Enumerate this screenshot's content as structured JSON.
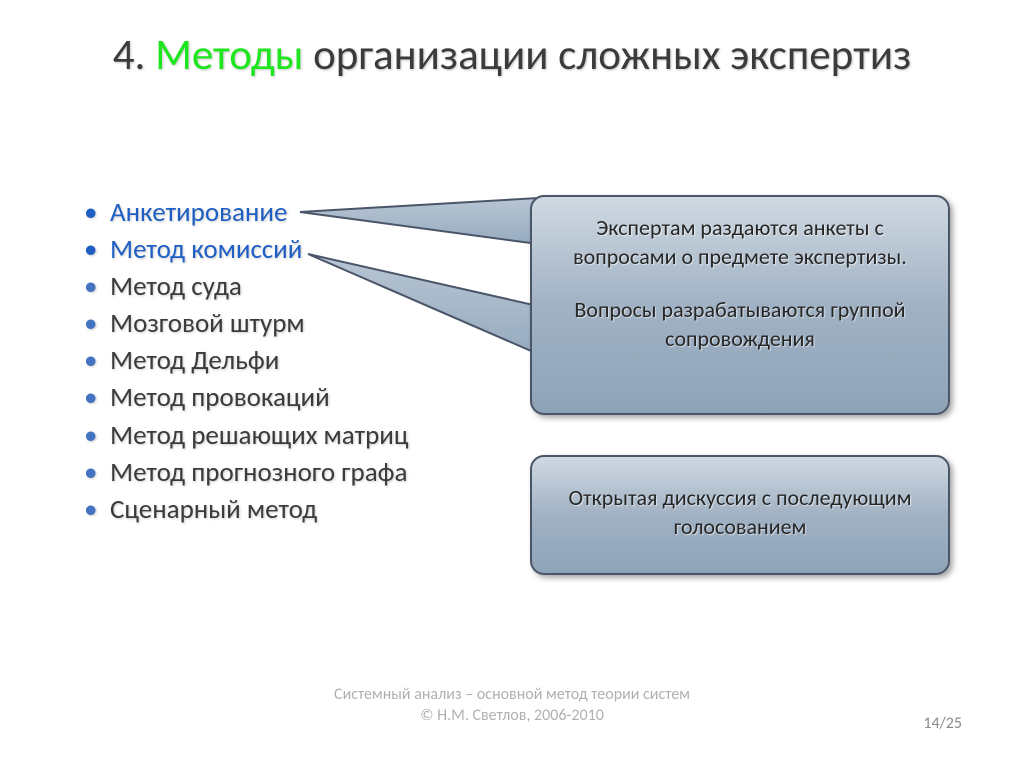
{
  "title": {
    "prefix": "4. ",
    "accent": "Методы",
    "rest": " организации сложных экспертиз"
  },
  "bullets": [
    {
      "text": "Анкетирование",
      "style": "blue"
    },
    {
      "text": "Метод комиссий",
      "style": "blue"
    },
    {
      "text": "Метод суда",
      "style": "plain"
    },
    {
      "text": "Мозговой штурм",
      "style": "plain"
    },
    {
      "text": "Метод Дельфи",
      "style": "plain"
    },
    {
      "text": "Метод провокаций",
      "style": "plain"
    },
    {
      "text": "Метод решающих матриц",
      "style": "plain"
    },
    {
      "text": "Метод прогнозного графа",
      "style": "plain"
    },
    {
      "text": "Сценарный метод",
      "style": "plain"
    }
  ],
  "callout1": {
    "p1": "Экспертам раздаются анкеты с вопросами о предмете экспертизы.",
    "p2": "Вопросы разрабатываются группой сопровождения"
  },
  "callout2": {
    "text": "Открытая дискуссия с последующим голосованием"
  },
  "pointers": {
    "stroke": "#4a5568",
    "fill_top": "#b8c6d4",
    "fill_bot": "#97abc0",
    "stroke_width": 2
  },
  "footer": {
    "line1": "Системный анализ – основной метод теории систем",
    "line2": "© Н.М. Светлов, 2006-2010"
  },
  "page": "14/25",
  "colors": {
    "background": "#ffffff",
    "title_text": "#3b3b3b",
    "accent_green": "#1ee61e",
    "bullet_blue": "#1f5fc4",
    "bullet_plain": "#3b3b3b",
    "bullet_marker": "#4372c0",
    "footer_gray": "#b0b0b0",
    "page_gray": "#8a8a8a",
    "callout_border": "#4a5568",
    "callout_grad_top": "#cfd9e2",
    "callout_grad_mid": "#a1b2c4",
    "callout_grad_bot": "#8fa3b8"
  },
  "typography": {
    "title_fontsize": 43,
    "bullet_fontsize": 27,
    "callout_fontsize": 22,
    "footer_fontsize": 16,
    "font_family": "Calibri"
  },
  "layout": {
    "slide_w": 1024,
    "slide_h": 767,
    "callout_radius": 14
  }
}
